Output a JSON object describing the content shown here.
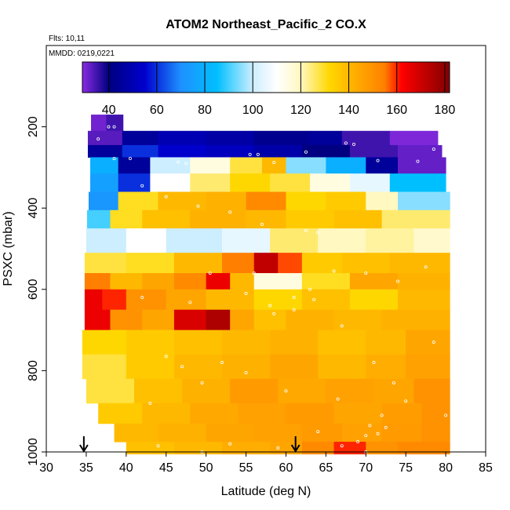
{
  "chart_data": {
    "type": "heatmap",
    "title": "ATOM2 Northeast_Pacific_2 CO.X",
    "flights_label": "Flts: 10,11",
    "dates_label": "MMDD: 0219,0221",
    "xlabel": "Latitude (deg N)",
    "ylabel": "PSXC (mbar)",
    "xlim": [
      30,
      85
    ],
    "ylim": [
      1000,
      0
    ],
    "x_ticks": [
      "30",
      "35",
      "40",
      "45",
      "50",
      "55",
      "60",
      "65",
      "70",
      "75",
      "80",
      "85"
    ],
    "y_ticks": [
      "200",
      "400",
      "600",
      "800",
      "1000"
    ],
    "colorbar": {
      "range": [
        29,
        182
      ],
      "tick_labels": [
        "40",
        "60",
        "80",
        "100",
        "120",
        "140",
        "160",
        "180"
      ],
      "stops": [
        {
          "value": 29,
          "color": "#8a2be2"
        },
        {
          "value": 40,
          "color": "#000080"
        },
        {
          "value": 55,
          "color": "#0000cd"
        },
        {
          "value": 70,
          "color": "#1e90ff"
        },
        {
          "value": 85,
          "color": "#00bfff"
        },
        {
          "value": 100,
          "color": "#cceeff"
        },
        {
          "value": 110,
          "color": "#ffffff"
        },
        {
          "value": 120,
          "color": "#fff8c0"
        },
        {
          "value": 132,
          "color": "#ffd700"
        },
        {
          "value": 145,
          "color": "#ffa500"
        },
        {
          "value": 155,
          "color": "#ff7f00"
        },
        {
          "value": 162,
          "color": "#ff0000"
        },
        {
          "value": 172,
          "color": "#c00000"
        },
        {
          "value": 182,
          "color": "#800000"
        }
      ]
    },
    "arrows_latitude": [
      34.7,
      61.2
    ],
    "layers": [
      {
        "p_top": 170,
        "p_bot": 210,
        "segments": [
          [
            35.6,
            37.5,
            31
          ],
          [
            37.5,
            39.6,
            35
          ]
        ]
      },
      {
        "p_top": 210,
        "p_bot": 245,
        "segments": [
          [
            35.2,
            39.5,
            33
          ],
          [
            39.5,
            44,
            45
          ],
          [
            44,
            50,
            50
          ],
          [
            50,
            56,
            47
          ],
          [
            56,
            63,
            43
          ],
          [
            63,
            67,
            45
          ],
          [
            67,
            73,
            35
          ],
          [
            73,
            79,
            30
          ]
        ]
      },
      {
        "p_top": 245,
        "p_bot": 275,
        "segments": [
          [
            35.2,
            39.5,
            45
          ],
          [
            39.5,
            44,
            60
          ],
          [
            44,
            50,
            55
          ],
          [
            50,
            56,
            52
          ],
          [
            56,
            62,
            48
          ],
          [
            62,
            68,
            40
          ],
          [
            68,
            74,
            35
          ],
          [
            74,
            79.5,
            32
          ]
        ]
      },
      {
        "p_top": 275,
        "p_bot": 315,
        "segments": [
          [
            35.5,
            39,
            80
          ],
          [
            39,
            43,
            45
          ],
          [
            43,
            48,
            100
          ],
          [
            48,
            53,
            115
          ],
          [
            53,
            57,
            128
          ],
          [
            57,
            60,
            140
          ],
          [
            60,
            65,
            95
          ],
          [
            65,
            70,
            80
          ],
          [
            70,
            74,
            45
          ],
          [
            74,
            80,
            32
          ]
        ]
      },
      {
        "p_top": 315,
        "p_bot": 360,
        "segments": [
          [
            35.5,
            39,
            75
          ],
          [
            39,
            43,
            60
          ],
          [
            43,
            48,
            110
          ],
          [
            48,
            53,
            125
          ],
          [
            53,
            58,
            132
          ],
          [
            58,
            63,
            128
          ],
          [
            63,
            68,
            115
          ],
          [
            68,
            73,
            105
          ],
          [
            73,
            80,
            85
          ]
        ]
      },
      {
        "p_top": 360,
        "p_bot": 405,
        "segments": [
          [
            35.3,
            39,
            72
          ],
          [
            39,
            44,
            130
          ],
          [
            44,
            50,
            140
          ],
          [
            50,
            55,
            142
          ],
          [
            55,
            60,
            152
          ],
          [
            60,
            65,
            132
          ],
          [
            65,
            70,
            135
          ],
          [
            70,
            74,
            120
          ],
          [
            74,
            80.5,
            95
          ]
        ]
      },
      {
        "p_top": 405,
        "p_bot": 450,
        "segments": [
          [
            35.1,
            38,
            90
          ],
          [
            38,
            42,
            130
          ],
          [
            42,
            48,
            138
          ],
          [
            48,
            55,
            142
          ],
          [
            55,
            60,
            140
          ],
          [
            60,
            66,
            135
          ],
          [
            66,
            72,
            138
          ],
          [
            72,
            80.5,
            125
          ]
        ]
      },
      {
        "p_top": 450,
        "p_bot": 510,
        "segments": [
          [
            35,
            40,
            100
          ],
          [
            40,
            45,
            110
          ],
          [
            45,
            52,
            100
          ],
          [
            52,
            58,
            105
          ],
          [
            58,
            64,
            125
          ],
          [
            64,
            70,
            120
          ],
          [
            70,
            76,
            122
          ],
          [
            76,
            80.5,
            118
          ]
        ]
      },
      {
        "p_top": 510,
        "p_bot": 560,
        "segments": [
          [
            34.8,
            40,
            128
          ],
          [
            40,
            46,
            130
          ],
          [
            46,
            52,
            140
          ],
          [
            52,
            56,
            155
          ],
          [
            56,
            59,
            172
          ],
          [
            59,
            62,
            158
          ],
          [
            62,
            67,
            135
          ],
          [
            67,
            73,
            138
          ],
          [
            73,
            80.5,
            140
          ]
        ]
      },
      {
        "p_top": 560,
        "p_bot": 600,
        "segments": [
          [
            34.8,
            38,
            155
          ],
          [
            38,
            42,
            140
          ],
          [
            42,
            46,
            145
          ],
          [
            46,
            50,
            152
          ],
          [
            50,
            53,
            165
          ],
          [
            53,
            56,
            140
          ],
          [
            56,
            62,
            115
          ],
          [
            62,
            68,
            130
          ],
          [
            68,
            74,
            145
          ],
          [
            74,
            80.5,
            142
          ]
        ]
      },
      {
        "p_top": 600,
        "p_bot": 650,
        "segments": [
          [
            34.8,
            37,
            165
          ],
          [
            37,
            40,
            160
          ],
          [
            40,
            45,
            150
          ],
          [
            45,
            50,
            145
          ],
          [
            50,
            56,
            140
          ],
          [
            56,
            62,
            132
          ],
          [
            62,
            68,
            138
          ],
          [
            68,
            74,
            132
          ],
          [
            74,
            80.5,
            140
          ]
        ]
      },
      {
        "p_top": 650,
        "p_bot": 700,
        "segments": [
          [
            34.8,
            38,
            165
          ],
          [
            38,
            42,
            150
          ],
          [
            42,
            46,
            145
          ],
          [
            46,
            50,
            168
          ],
          [
            50,
            53,
            175
          ],
          [
            53,
            56,
            145
          ],
          [
            56,
            60,
            138
          ],
          [
            60,
            66,
            142
          ],
          [
            66,
            72,
            140
          ],
          [
            72,
            80.5,
            142
          ]
        ]
      },
      {
        "p_top": 700,
        "p_bot": 760,
        "segments": [
          [
            34.5,
            40,
            132
          ],
          [
            40,
            46,
            135
          ],
          [
            46,
            52,
            138
          ],
          [
            52,
            58,
            140
          ],
          [
            58,
            64,
            142
          ],
          [
            64,
            70,
            138
          ],
          [
            70,
            75,
            140
          ],
          [
            75,
            80.5,
            145
          ]
        ]
      },
      {
        "p_top": 760,
        "p_bot": 820,
        "segments": [
          [
            34.5,
            40,
            128
          ],
          [
            40,
            46,
            135
          ],
          [
            46,
            52,
            140
          ],
          [
            52,
            58,
            142
          ],
          [
            58,
            64,
            145
          ],
          [
            64,
            70,
            140
          ],
          [
            70,
            75,
            143
          ],
          [
            75,
            80.5,
            146
          ]
        ]
      },
      {
        "p_top": 820,
        "p_bot": 880,
        "segments": [
          [
            35,
            41,
            128
          ],
          [
            41,
            47,
            138
          ],
          [
            47,
            53,
            142
          ],
          [
            53,
            59,
            148
          ],
          [
            59,
            65,
            144
          ],
          [
            65,
            71,
            146
          ],
          [
            71,
            76,
            145
          ],
          [
            76,
            80.5,
            150
          ]
        ]
      },
      {
        "p_top": 880,
        "p_bot": 930,
        "segments": [
          [
            36.5,
            42,
            135
          ],
          [
            42,
            48,
            140
          ],
          [
            48,
            54,
            144
          ],
          [
            54,
            60,
            146
          ],
          [
            60,
            66,
            148
          ],
          [
            66,
            72,
            145
          ],
          [
            72,
            77,
            147
          ],
          [
            77,
            80.5,
            150
          ]
        ]
      },
      {
        "p_top": 930,
        "p_bot": 975,
        "segments": [
          [
            38.5,
            44,
            140
          ],
          [
            44,
            50,
            142
          ],
          [
            50,
            56,
            145
          ],
          [
            56,
            62,
            146
          ],
          [
            62,
            67,
            148
          ],
          [
            67,
            72,
            146
          ],
          [
            72,
            77,
            148
          ],
          [
            77,
            80.5,
            150
          ]
        ]
      },
      {
        "p_top": 975,
        "p_bot": 1005,
        "segments": [
          [
            40,
            46,
            138
          ],
          [
            46,
            52,
            140
          ],
          [
            52,
            58,
            143
          ],
          [
            58,
            62,
            145
          ],
          [
            62,
            66,
            152
          ],
          [
            66,
            70,
            160
          ],
          [
            70,
            74,
            150
          ],
          [
            74,
            80.5,
            152
          ]
        ]
      }
    ],
    "sample_points": [
      [
        36.5,
        230
      ],
      [
        38.5,
        200
      ],
      [
        37.8,
        200
      ],
      [
        46.5,
        287
      ],
      [
        47.5,
        290
      ],
      [
        55.5,
        268
      ],
      [
        56.5,
        268
      ],
      [
        58.5,
        288
      ],
      [
        62.5,
        262
      ],
      [
        67.5,
        240
      ],
      [
        68.5,
        243
      ],
      [
        71.5,
        283
      ],
      [
        76.5,
        285
      ],
      [
        78.5,
        255
      ],
      [
        38.5,
        278
      ],
      [
        40.5,
        278
      ],
      [
        42,
        345
      ],
      [
        45,
        372
      ],
      [
        49,
        395
      ],
      [
        53,
        410
      ],
      [
        57,
        440
      ],
      [
        62.5,
        455
      ],
      [
        64,
        460
      ],
      [
        66,
        555
      ],
      [
        70,
        560
      ],
      [
        74,
        580
      ],
      [
        77.5,
        545
      ],
      [
        42,
        620
      ],
      [
        48,
        632
      ],
      [
        55,
        610
      ],
      [
        58,
        640
      ],
      [
        61,
        620
      ],
      [
        63,
        600
      ],
      [
        67,
        690
      ],
      [
        71,
        780
      ],
      [
        73.5,
        830
      ],
      [
        72,
        910
      ],
      [
        70.5,
        935
      ],
      [
        70,
        960
      ],
      [
        69,
        975
      ],
      [
        71.5,
        955
      ],
      [
        72.5,
        940
      ],
      [
        66.5,
        870
      ],
      [
        60,
        850
      ],
      [
        55,
        805
      ],
      [
        52,
        780
      ],
      [
        49.5,
        830
      ],
      [
        47,
        790
      ],
      [
        45,
        765
      ],
      [
        43,
        880
      ],
      [
        44,
        985
      ],
      [
        49.5,
        1000
      ],
      [
        53,
        980
      ],
      [
        59,
        990
      ],
      [
        64,
        950
      ],
      [
        67,
        985
      ],
      [
        70,
        1000
      ],
      [
        75,
        875
      ],
      [
        78.5,
        730
      ],
      [
        80,
        910
      ],
      [
        61,
        650
      ],
      [
        63.5,
        625
      ],
      [
        58.5,
        660
      ],
      [
        56,
        560
      ],
      [
        50.5,
        560
      ]
    ]
  }
}
